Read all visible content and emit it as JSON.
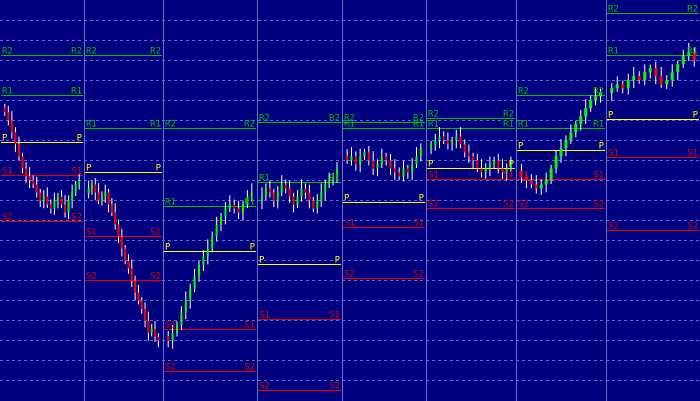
{
  "colors": {
    "background": "#000080",
    "grid_horizontal": "#8a8fd0",
    "separator": "#6b73c8",
    "bull_candle": "#00ff00",
    "bear_candle": "#ff0000",
    "wick": "#ffffff",
    "r2": "#00c000",
    "r1": "#00c000",
    "pivot": "#ffff00",
    "s1": "#e00000",
    "s2": "#e00000"
  },
  "labels": {
    "r2": "R2",
    "r1": "R1",
    "pivot": "P",
    "s1": "S1",
    "s2": "S2"
  },
  "chart_data": {
    "type": "candlestick",
    "title": "",
    "xlabel": "",
    "ylabel": "",
    "grid": true,
    "ylim": [
      0,
      100
    ],
    "periods": [
      {
        "r2": 86.3,
        "r1": 76.3,
        "p": 64.6,
        "s1": 56.3,
        "s2": 44.8,
        "closes": [
          72,
          70,
          67,
          64,
          61,
          58,
          56,
          55,
          54,
          52,
          50,
          51,
          49,
          48,
          50,
          51,
          49,
          47,
          50,
          52,
          54,
          55
        ]
      },
      {
        "r2": 86.3,
        "r1": 68.2,
        "p": 57.2,
        "s1": 41.2,
        "s2": 30.2,
        "closes": [
          53,
          54,
          52,
          50,
          51,
          52,
          49,
          47,
          44,
          41,
          38,
          35,
          33,
          30,
          27,
          25,
          23,
          20,
          17,
          18,
          16,
          15
        ]
      },
      {
        "r2": 68.2,
        "r1": 48.6,
        "p": 37.4,
        "s1": 17.9,
        "s2": 7.4,
        "closes": [
          15,
          17,
          19,
          22,
          25,
          28,
          31,
          34,
          36,
          38,
          41,
          44,
          46,
          48,
          49,
          48,
          47,
          49,
          51,
          52
        ]
      },
      {
        "r2": 69.6,
        "r1": 54.6,
        "p": 34.2,
        "s1": 20.4,
        "s2": 2.7,
        "closes": [
          51,
          53,
          52,
          50,
          52,
          54,
          53,
          51,
          49,
          51,
          53,
          52,
          50,
          48,
          50,
          52,
          54,
          55,
          56,
          58
        ]
      },
      {
        "r2": 69.6,
        "r1": 68.1,
        "p": 49.6,
        "s1": 43.5,
        "s2": 30.7,
        "closes": [
          60,
          61,
          59,
          61,
          62,
          60,
          58,
          59,
          61,
          60,
          58,
          57,
          56,
          58,
          57,
          59,
          61,
          63
        ]
      },
      {
        "r2": 70.6,
        "r1": 68.1,
        "p": 58.0,
        "s1": 55.3,
        "s2": 48.2,
        "closes": [
          64,
          65,
          66,
          65,
          64,
          65,
          66,
          64,
          62,
          61,
          60,
          58,
          57,
          58,
          59,
          60,
          58,
          57,
          58,
          59
        ]
      },
      {
        "r2": 76.3,
        "r1": 68.1,
        "p": 62.6,
        "s1": 55.3,
        "s2": 48.2,
        "closes": [
          56,
          55,
          54,
          53,
          54,
          55,
          58,
          61,
          63,
          65,
          67,
          69,
          71,
          73,
          75,
          76,
          77
        ]
      },
      {
        "r2": 96.7,
        "r1": 86.3,
        "p": 70.3,
        "s1": 60.8,
        "s2": 42.6,
        "closes": [
          78,
          79,
          78,
          80,
          81,
          80,
          82,
          83,
          81,
          79,
          80,
          82,
          84,
          86,
          87,
          85
        ]
      }
    ]
  }
}
